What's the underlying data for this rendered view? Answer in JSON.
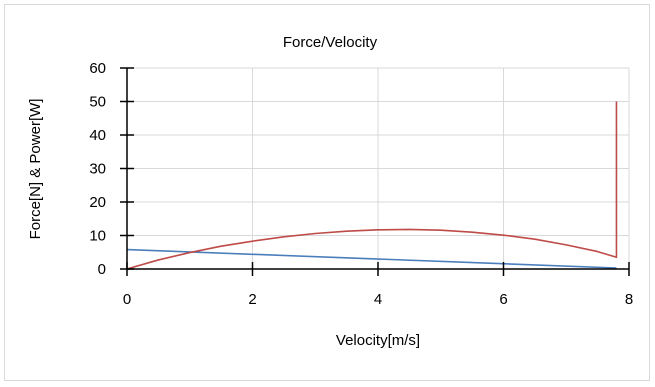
{
  "chart_data": {
    "type": "line",
    "title": "Force/Velocity",
    "xlabel": "Velocity[m/s]",
    "ylabel": "Force[N] & Power[W]",
    "xlim": [
      0,
      8
    ],
    "ylim": [
      0,
      60
    ],
    "x_ticks": [
      "0",
      "2",
      "4",
      "6",
      "8"
    ],
    "y_ticks": [
      "0",
      "10",
      "20",
      "30",
      "40",
      "50",
      "60"
    ],
    "grid": true,
    "legend": "none",
    "series": [
      {
        "color": "#4a7ebb",
        "points": [
          [
            0,
            5.8
          ],
          [
            7.8,
            0.3
          ],
          [
            7.8,
            0.3
          ]
        ]
      },
      {
        "color": "#be4b48",
        "points": [
          [
            0,
            0
          ],
          [
            0.5,
            2.7
          ],
          [
            1,
            4.9
          ],
          [
            1.5,
            6.8
          ],
          [
            2,
            8.3
          ],
          [
            2.5,
            9.6
          ],
          [
            3,
            10.6
          ],
          [
            3.5,
            11.3
          ],
          [
            4,
            11.7
          ],
          [
            4.5,
            11.8
          ],
          [
            5,
            11.6
          ],
          [
            5.5,
            11.0
          ],
          [
            6,
            10.1
          ],
          [
            6.5,
            8.9
          ],
          [
            7,
            7.2
          ],
          [
            7.5,
            5.2
          ],
          [
            7.8,
            3.5
          ],
          [
            7.8,
            50
          ]
        ]
      }
    ]
  }
}
